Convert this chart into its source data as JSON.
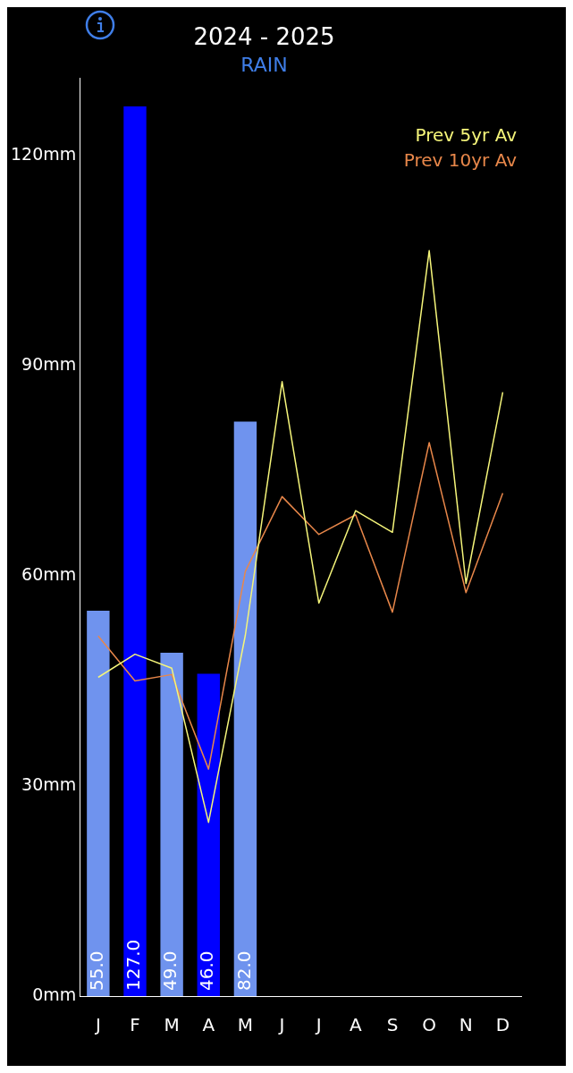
{
  "chart_data": {
    "type": "bar",
    "title": "2024 - 2025",
    "subtitle": "RAIN",
    "categories": [
      "J",
      "F",
      "M",
      "A",
      "M",
      "J",
      "J",
      "A",
      "S",
      "O",
      "N",
      "D"
    ],
    "series": [
      {
        "colors": [
          "#6f93ee",
          "#0000ff",
          "#6f93ee",
          "#0000ff",
          "#6f93ee",
          null,
          null,
          null,
          null,
          null,
          null,
          null
        ],
        "values": [
          55,
          127,
          49,
          46,
          82,
          null,
          null,
          null,
          null,
          null,
          null,
          null
        ],
        "value_labels": [
          "55.0",
          "127.0",
          "49.0",
          "46.0",
          "82.0",
          null,
          null,
          null,
          null,
          null,
          null,
          null
        ]
      },
      {
        "type": "line",
        "name": "Prev 5yr Av",
        "color": "#f5f57a",
        "values": [
          45.5,
          48.8,
          46.8,
          24.8,
          51.5,
          87.7,
          56.1,
          69.3,
          66.2,
          106.4,
          58.9,
          86.2
        ]
      },
      {
        "type": "line",
        "name": "Prev 10yr Av",
        "color": "#e8874a",
        "values": [
          51.4,
          45,
          45.9,
          32.4,
          60.6,
          71.3,
          65.9,
          68.7,
          54.8,
          79,
          57.6,
          71.8
        ]
      }
    ],
    "ylim": [
      0,
      131
    ],
    "yticks": [
      {
        "value": 0,
        "label": "0mm"
      },
      {
        "value": 30,
        "label": "30mm"
      },
      {
        "value": 60,
        "label": "60mm"
      },
      {
        "value": 90,
        "label": "90mm"
      },
      {
        "value": 120,
        "label": "120mm"
      }
    ],
    "grid": false,
    "legend": "top right",
    "marker": "none",
    "line_style": "solid"
  }
}
